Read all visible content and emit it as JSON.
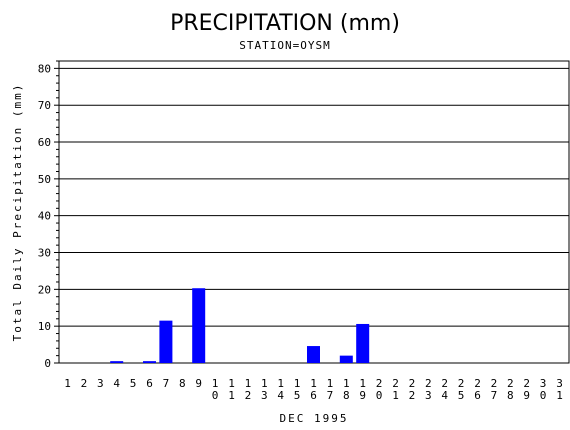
{
  "chart_data": {
    "type": "bar",
    "title": "PRECIPITATION (mm)",
    "subtitle": "STATION=OYSM",
    "xlabel": "DEC 1995",
    "ylabel": "Total Daily Precipitation (mm)",
    "ylim": [
      0,
      82
    ],
    "yticks": [
      0,
      10,
      20,
      30,
      40,
      50,
      60,
      70,
      80
    ],
    "grid": true,
    "bar_color": "#0000ff",
    "categories": [
      "1",
      "2",
      "3",
      "4",
      "5",
      "6",
      "7",
      "8",
      "9",
      "10",
      "11",
      "12",
      "13",
      "14",
      "15",
      "16",
      "17",
      "18",
      "19",
      "20",
      "21",
      "22",
      "23",
      "24",
      "25",
      "26",
      "27",
      "28",
      "29",
      "30",
      "31"
    ],
    "values": [
      0,
      0,
      0,
      0.5,
      0,
      0.5,
      11.5,
      0,
      20.3,
      0,
      0,
      0,
      0,
      0,
      0,
      4.6,
      0,
      2.0,
      10.6,
      0,
      0,
      0,
      0,
      0,
      0,
      0,
      0,
      0,
      0,
      0,
      0
    ]
  }
}
